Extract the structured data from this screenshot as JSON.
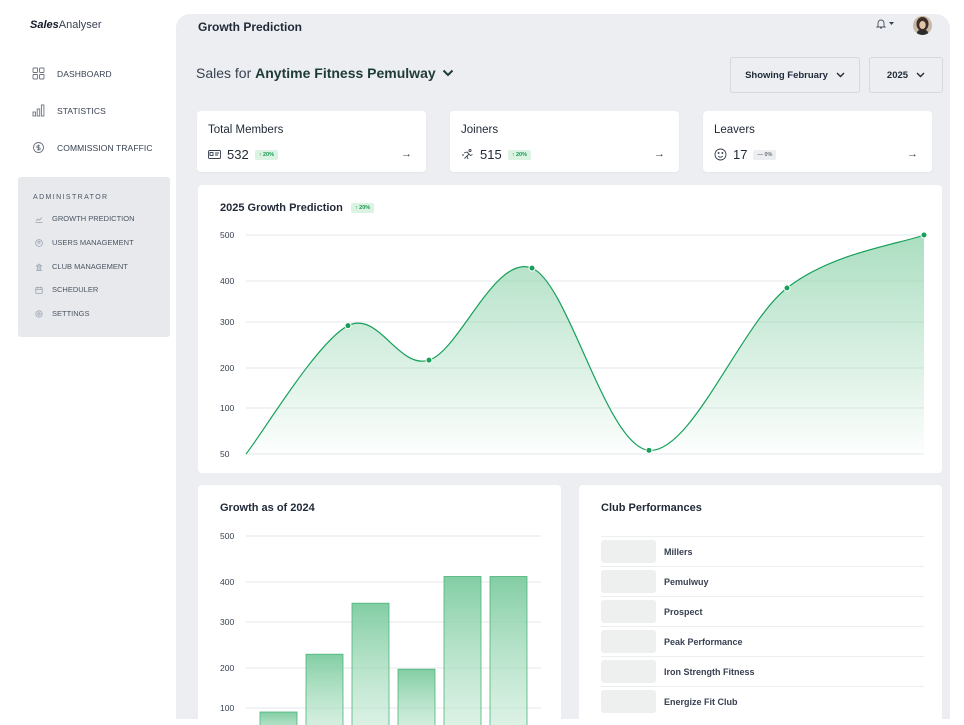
{
  "brand": {
    "bold": "Sales",
    "rest": "Analyser"
  },
  "nav": [
    {
      "label": "DASHBOARD",
      "icon": "grid-icon"
    },
    {
      "label": "STATISTICS",
      "icon": "bar-chart-icon"
    },
    {
      "label": "COMMISSION TRAFFIC",
      "icon": "dollar-cycle-icon"
    }
  ],
  "admin": {
    "title": "ADMINISTRATOR",
    "items": [
      {
        "label": "GROWTH PREDICTION",
        "icon": "trend-icon"
      },
      {
        "label": "USERS MANAGEMENT",
        "icon": "user-circle-icon"
      },
      {
        "label": "CLUB MANAGEMENT",
        "icon": "building-icon"
      },
      {
        "label": "SCHEDULER",
        "icon": "calendar-icon"
      },
      {
        "label": "SETTINGS",
        "icon": "gear-icon"
      }
    ]
  },
  "header": {
    "title": "Growth Prediction"
  },
  "sales": {
    "prefix": "Sales for ",
    "club": "Anytime Fitness Pemulway"
  },
  "filters": {
    "month": "Showing February",
    "year": "2025"
  },
  "stats": [
    {
      "label": "Total Members",
      "value": "532",
      "badge": "↑ 20%",
      "trend": "up",
      "icon": "id-card-icon"
    },
    {
      "label": "Joiners",
      "value": "515",
      "badge": "↑ 20%",
      "trend": "up",
      "icon": "runner-icon"
    },
    {
      "label": "Leavers",
      "value": "17",
      "badge": "— 0%",
      "trend": "flat",
      "icon": "smile-icon"
    }
  ],
  "prediction": {
    "title": "2025 Growth Prediction",
    "badge": "↑ 20%"
  },
  "growth": {
    "title": "Growth as of 2024"
  },
  "clubs": {
    "title": "Club Performances",
    "items": [
      "Millers",
      "Pemulwuy",
      "Prospect",
      "Peak Performance",
      "Iron Strength Fitness",
      "Energize Fit Club"
    ]
  },
  "colors": {
    "accent": "#16a05a",
    "fill": "#8fd3ac",
    "background": "#eceef1"
  },
  "chart_data": [
    {
      "type": "area",
      "title": "2025 Growth Prediction",
      "x": [
        0,
        1,
        2,
        3,
        4,
        5,
        6
      ],
      "values": [
        50,
        292,
        217,
        428,
        54,
        383,
        500
      ],
      "yticks": [
        50,
        100,
        200,
        300,
        400,
        500
      ],
      "ylim": [
        50,
        500
      ],
      "grid": true
    },
    {
      "type": "bar",
      "title": "Growth as of 2024",
      "values": [
        90,
        230,
        347,
        197,
        412,
        412
      ],
      "yticks": [
        100,
        200,
        300,
        400,
        500
      ],
      "ylim": [
        0,
        500
      ],
      "grid": true
    }
  ]
}
